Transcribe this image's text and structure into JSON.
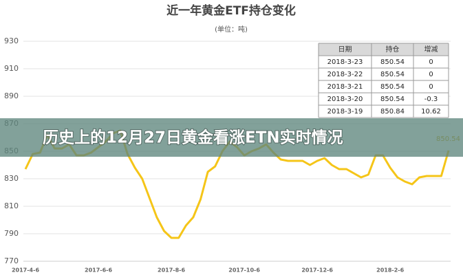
{
  "chart_data": {
    "type": "line",
    "title": "近一年黄金ETF持仓变化",
    "subtitle": "(单位：吨)",
    "categories": [
      "2017-4-6",
      null,
      null,
      null,
      null,
      null,
      null,
      null,
      null,
      null,
      "2017-6-6",
      null,
      null,
      null,
      null,
      null,
      null,
      null,
      null,
      null,
      "2017-8-6",
      null,
      null,
      null,
      null,
      null,
      null,
      null,
      null,
      null,
      "2017-10-6",
      null,
      null,
      null,
      null,
      null,
      null,
      null,
      null,
      null,
      "2017-12-6",
      null,
      null,
      null,
      null,
      null,
      null,
      null,
      null,
      null,
      "2018-2-6",
      null,
      null,
      null,
      null,
      null,
      null,
      null,
      null
    ],
    "values": [
      837,
      848,
      849,
      862,
      852,
      852,
      855,
      847,
      847,
      849,
      853,
      857,
      863,
      865,
      848,
      838,
      830,
      816,
      802,
      792,
      787,
      787,
      796,
      802,
      815,
      835,
      839,
      850,
      857,
      853,
      847,
      850,
      852,
      855,
      849,
      844,
      843,
      843,
      843,
      840,
      843,
      845,
      840,
      837,
      837,
      834,
      831,
      833,
      847,
      847,
      838,
      831,
      828,
      826,
      831,
      832,
      832,
      832,
      850.54
    ],
    "color": "#f5c518",
    "ylim": [
      770,
      935
    ],
    "yticks": [
      770,
      790,
      810,
      830,
      850,
      870,
      890,
      910,
      930
    ],
    "grid": true,
    "end_annotation": "850.54",
    "table": {
      "header": [
        "日期",
        "持仓",
        "增减"
      ],
      "rows": [
        [
          "2018-3-23",
          "850.54",
          "0"
        ],
        [
          "2018-3-22",
          "850.54",
          "0"
        ],
        [
          "2018-3-21",
          "850.54",
          "0"
        ],
        [
          "2018-3-20",
          "850.54",
          "-0.3"
        ],
        [
          "2018-3-19",
          "850.84",
          "10.62"
        ]
      ]
    },
    "banner": "历史上的12月27日黄金看涨ETN实时情况"
  }
}
